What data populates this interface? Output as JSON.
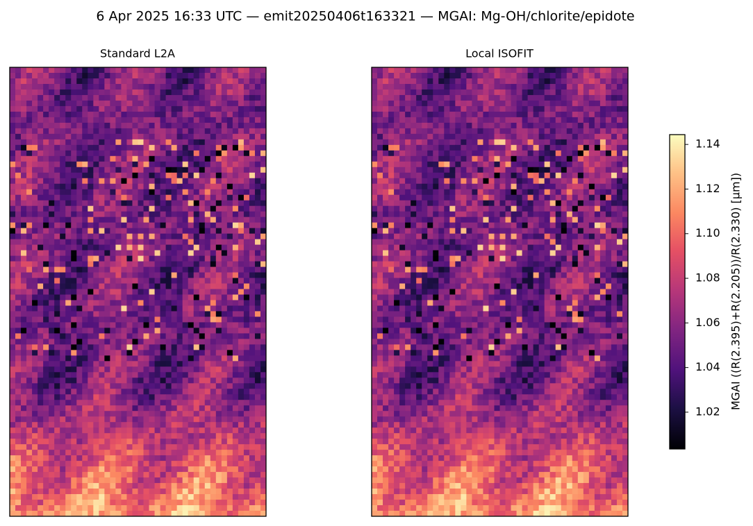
{
  "chart_data": {
    "type": "heatmap",
    "title": "6 Apr 2025 16:33 UTC — emit20250406t163321 — MGAI: Mg-OH/chlorite/epidote",
    "panels": [
      {
        "title": "Standard L2A"
      },
      {
        "title": "Local ISOFIT"
      }
    ],
    "colormap": "magma",
    "colorbar_label": "MGAI  ((R(2.395)+R(2.205))/R(2.330)  [µm])",
    "clim": [
      1.0035,
      1.1444
    ],
    "cticks": [
      1.02,
      1.04,
      1.06,
      1.08,
      {
        "value": 1.1,
        "label": "1.10"
      },
      1.12,
      1.14
    ]
  }
}
